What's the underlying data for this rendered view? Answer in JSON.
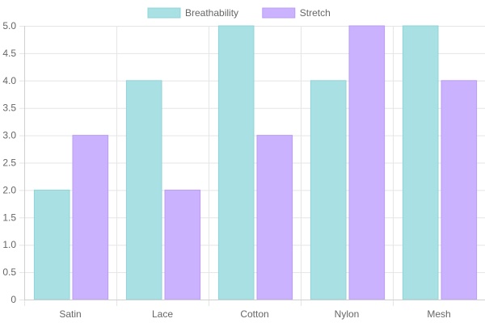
{
  "chart_data": {
    "type": "bar",
    "categories": [
      "Satin",
      "Lace",
      "Cotton",
      "Nylon",
      "Mesh"
    ],
    "series": [
      {
        "name": "Breathability",
        "values": [
          2,
          4,
          5,
          4,
          5
        ],
        "fill": "#a8e0e3",
        "stroke": "#8fd4d8"
      },
      {
        "name": "Stretch",
        "values": [
          3,
          2,
          3,
          5,
          4
        ],
        "fill": "#cbb2fe",
        "stroke": "#b99cf5"
      }
    ],
    "yticks": [
      "0",
      "0.5",
      "1.0",
      "1.5",
      "2.0",
      "2.5",
      "3.0",
      "3.5",
      "4.0",
      "4.5",
      "5.0"
    ],
    "ylim": [
      0,
      5
    ],
    "grid": true,
    "legend": "top-center",
    "gridColor": "#e5e5e5"
  }
}
